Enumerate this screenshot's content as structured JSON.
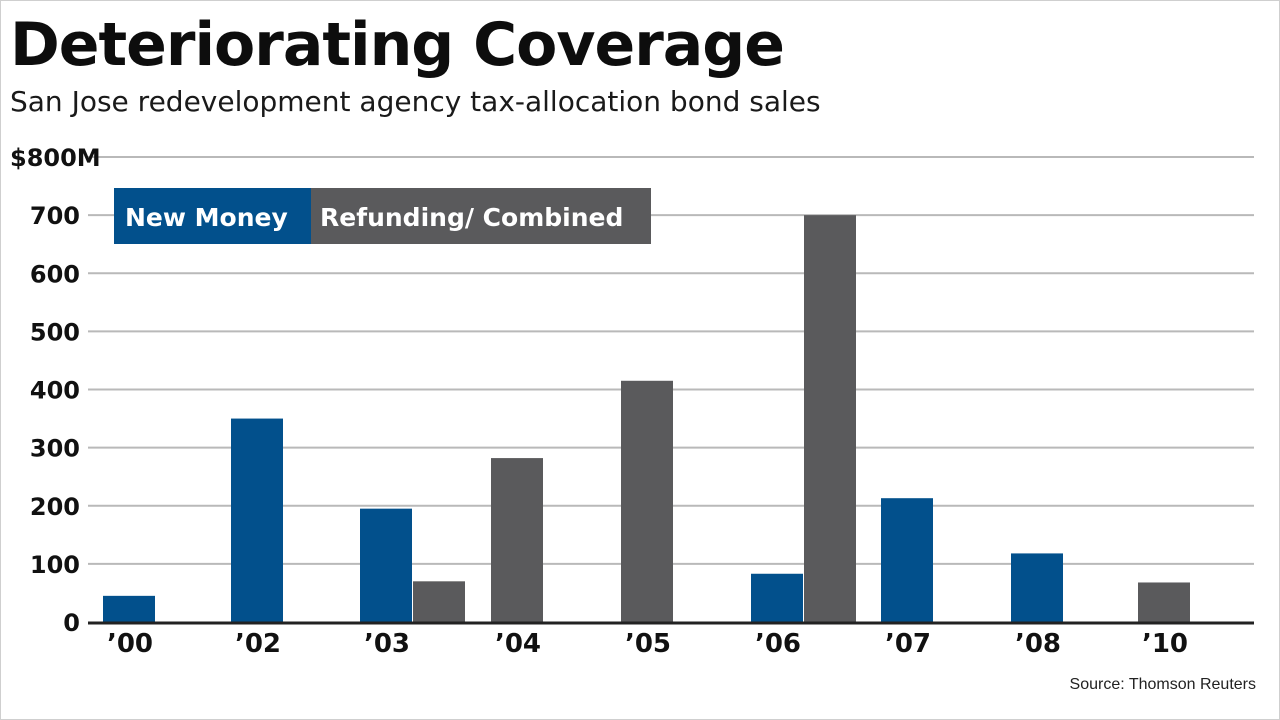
{
  "title": "Deteriorating Coverage",
  "subtitle": "San Jose redevelopment agency tax-allocation bond sales",
  "source": "Source: Thomson Reuters",
  "colors": {
    "new_money": "#02508c",
    "refunding": "#5a5a5c",
    "grid": "#b9b9b9",
    "axis": "#222222"
  },
  "chart_data": {
    "type": "bar",
    "title": "Deteriorating Coverage",
    "subtitle": "San Jose redevelopment agency tax-allocation bond sales",
    "xlabel": "",
    "ylabel": "",
    "categories": [
      "’00",
      "’02",
      "’03",
      "’04",
      "’05",
      "’06",
      "’07",
      "’08",
      "’10"
    ],
    "series": [
      {
        "name": "New Money",
        "values": [
          45,
          350,
          195,
          0,
          0,
          83,
          213,
          118,
          0
        ]
      },
      {
        "name": "Refunding/ Combined",
        "values": [
          0,
          0,
          70,
          282,
          415,
          700,
          0,
          0,
          68
        ]
      }
    ],
    "ylim": [
      0,
      800
    ],
    "yticks": [
      0,
      100,
      200,
      300,
      400,
      500,
      600,
      700,
      800
    ],
    "ytick_labels": [
      "0",
      "100",
      "200",
      "300",
      "400",
      "500",
      "600",
      "700",
      "$800M"
    ],
    "grid": true,
    "legend_position": "top-left"
  }
}
